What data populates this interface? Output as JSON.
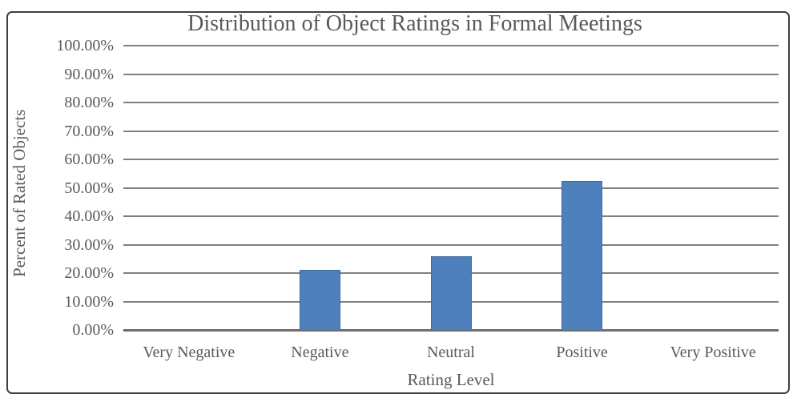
{
  "figure": {
    "background": "#ffffff",
    "frame_color": "#3f3f3f"
  },
  "chart_data": {
    "type": "bar",
    "title": "Distribution of Object Ratings in Formal Meetings",
    "xlabel": "Rating Level",
    "ylabel": "Percent of Rated Objects",
    "categories": [
      "Very Negative",
      "Negative",
      "Neutral",
      "Positive",
      "Very Positive"
    ],
    "values": [
      0,
      21,
      26,
      52.5,
      0
    ],
    "y_ticks": [
      "100.00%",
      "90.00%",
      "80.00%",
      "70.00%",
      "60.00%",
      "50.00%",
      "40.00%",
      "30.00%",
      "20.00%",
      "10.00%",
      "0.00%"
    ],
    "ylim": [
      0,
      100
    ],
    "y_tick_step": 10,
    "grid": true,
    "legend": false,
    "colors": {
      "bar_fill": "#4D80BC",
      "bar_border": "#41699F",
      "gridline": "#7F7F7F",
      "axis_line": "#6E6E6E",
      "text": "#595959"
    }
  }
}
